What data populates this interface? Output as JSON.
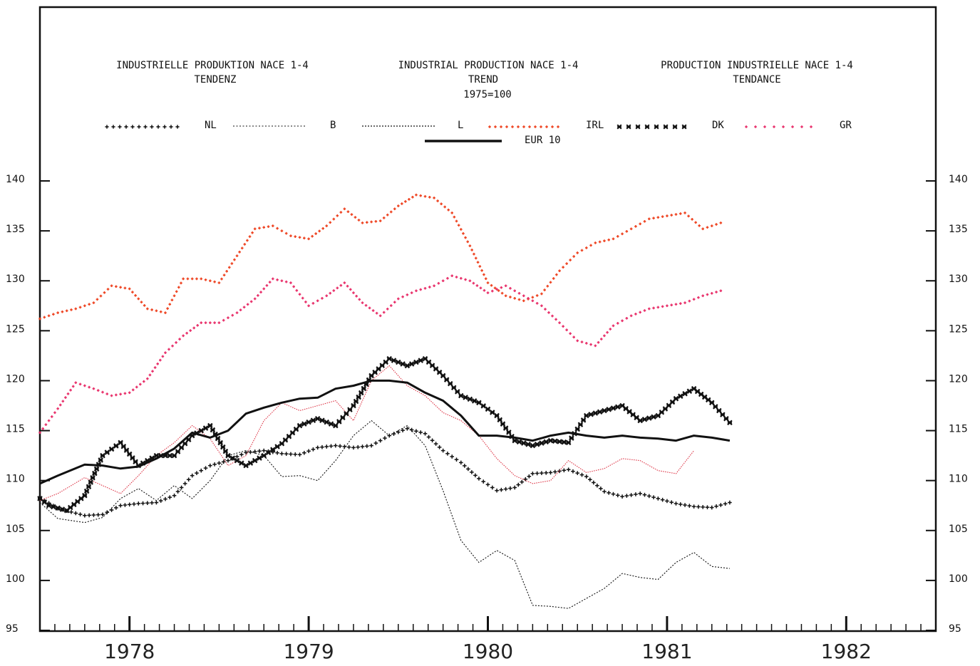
{
  "titles": {
    "de_line1": "INDUSTRIELLE PRODUKTION NACE 1-4",
    "de_line2": "TENDENZ",
    "en_line1": "INDUSTRIAL PRODUCTION NACE 1-4",
    "en_line2": "TREND",
    "en_line3": "1975=100",
    "fr_line1": "PRODUCTION INDUSTRIELLE NACE 1-4",
    "fr_line2": "TENDANCE"
  },
  "legend": {
    "nl": "NL",
    "b": "B",
    "l": "L",
    "irl": "IRL",
    "dk": "DK",
    "gr": "GR",
    "eur10": "EUR 10"
  },
  "colors": {
    "black": "#111111",
    "orange_red": "#ee4422",
    "pink": "#e8306a",
    "thin_red": "#dd3344"
  },
  "chart_data": {
    "type": "line",
    "title": "",
    "xlabel": "",
    "ylabel": "",
    "x_range": [
      1977.5,
      1982.5
    ],
    "ylim": [
      95,
      140
    ],
    "y_ticks": [
      95,
      100,
      105,
      110,
      115,
      120,
      125,
      130,
      135,
      140
    ],
    "y_tick_labels": [
      "95",
      "100",
      "105",
      "110",
      "115",
      "120",
      "125",
      "130",
      "135",
      "140"
    ],
    "x_tick_labels": [
      "1978",
      "1979",
      "1980",
      "1981",
      "1982"
    ],
    "series": [
      {
        "name": "NL",
        "style": "plus-marks",
        "color": "#111111",
        "x": [
          1977.5,
          1977.6,
          1977.75,
          1977.85,
          1977.95,
          1978.05,
          1978.15,
          1978.25,
          1978.35,
          1978.45,
          1978.55,
          1978.65,
          1978.75,
          1978.85,
          1978.95,
          1979.05,
          1979.15,
          1979.25,
          1979.35,
          1979.45,
          1979.55,
          1979.65,
          1979.75,
          1979.85,
          1979.95,
          1980.05,
          1980.15,
          1980.25,
          1980.35,
          1980.45,
          1980.55,
          1980.65,
          1980.75,
          1980.85,
          1980.95,
          1981.05,
          1981.15,
          1981.25,
          1981.35
        ],
        "y": [
          108.3,
          107.2,
          106.5,
          106.6,
          107.5,
          107.7,
          107.8,
          108.5,
          110.5,
          111.5,
          112,
          112.8,
          113,
          112.7,
          112.6,
          113.3,
          113.5,
          113.3,
          113.5,
          114.5,
          115.2,
          114.7,
          113,
          111.8,
          110.2,
          109,
          109.3,
          110.7,
          110.8,
          111.1,
          110.4,
          108.9,
          108.4,
          108.7,
          108.2,
          107.7,
          107.4,
          107.3,
          107.8
        ]
      },
      {
        "name": "B",
        "style": "thin-dotted",
        "color": "#111111",
        "x": [
          1977.5,
          1977.6,
          1977.75,
          1977.85,
          1977.95,
          1978.05,
          1978.15,
          1978.25,
          1978.35,
          1978.45,
          1978.55,
          1978.65,
          1978.75,
          1978.85,
          1978.95,
          1979.05,
          1979.15,
          1979.25,
          1979.35,
          1979.45,
          1979.55,
          1979.65,
          1979.75,
          1979.85,
          1979.95,
          1980.05,
          1980.15,
          1980.25,
          1980.35,
          1980.45,
          1980.55,
          1980.65,
          1980.75,
          1980.85,
          1980.95,
          1981.05,
          1981.15,
          1981.25,
          1981.35
        ],
        "y": [
          107.8,
          106.2,
          105.8,
          106.3,
          108.2,
          109.2,
          108.0,
          109.5,
          108.2,
          110.0,
          112.5,
          113.0,
          112.5,
          110.4,
          110.5,
          110.0,
          112.0,
          114.5,
          116.0,
          114.5,
          115.5,
          113.5,
          109.0,
          104.0,
          101.8,
          103.0,
          102.0,
          97.5,
          97.4,
          97.2,
          98.2,
          99.2,
          100.7,
          100.3,
          100.1,
          101.8,
          102.8,
          101.4,
          101.2
        ]
      },
      {
        "name": "L",
        "style": "thin-solid",
        "color": "#dd3344",
        "x": [
          1977.5,
          1977.6,
          1977.75,
          1977.85,
          1977.95,
          1978.05,
          1978.15,
          1978.25,
          1978.35,
          1978.45,
          1978.55,
          1978.65,
          1978.75,
          1978.85,
          1978.95,
          1979.05,
          1979.15,
          1979.25,
          1979.35,
          1979.45,
          1979.55,
          1979.65,
          1979.75,
          1979.85,
          1979.95,
          1980.05,
          1980.15,
          1980.25,
          1980.35,
          1980.45,
          1980.55,
          1980.65,
          1980.75,
          1980.85,
          1980.95,
          1981.05,
          1981.15
        ],
        "y": [
          108.0,
          108.7,
          110.3,
          109.5,
          108.7,
          110.5,
          112.5,
          113.8,
          115.5,
          114.2,
          111.5,
          112.5,
          116.0,
          117.8,
          117.0,
          117.5,
          118.0,
          116.0,
          120.0,
          121.5,
          119.5,
          118.5,
          116.8,
          116.0,
          114.5,
          112.2,
          110.5,
          109.7,
          110.0,
          112.0,
          110.8,
          111.2,
          112.2,
          112.0,
          111.0,
          110.7,
          113.0
        ]
      },
      {
        "name": "IRL",
        "style": "small-marks",
        "color": "#ee4422",
        "x": [
          1977.5,
          1977.6,
          1977.7,
          1977.8,
          1977.9,
          1978.0,
          1978.1,
          1978.2,
          1978.3,
          1978.4,
          1978.5,
          1978.6,
          1978.7,
          1978.8,
          1978.9,
          1979.0,
          1979.1,
          1979.2,
          1979.3,
          1979.4,
          1979.5,
          1979.6,
          1979.7,
          1979.8,
          1979.9,
          1980.0,
          1980.1,
          1980.2,
          1980.3,
          1980.4,
          1980.5,
          1980.6,
          1980.7,
          1980.8,
          1980.9,
          1981.0,
          1981.1,
          1981.2,
          1981.3
        ],
        "y": [
          126.2,
          126.8,
          127.2,
          127.8,
          129.5,
          129.2,
          127.2,
          126.8,
          130.2,
          130.2,
          129.8,
          132.5,
          135.2,
          135.5,
          134.5,
          134.2,
          135.5,
          137.2,
          135.8,
          136.0,
          137.5,
          138.6,
          138.3,
          136.8,
          133.5,
          129.8,
          128.5,
          128.0,
          128.7,
          131.0,
          132.8,
          133.8,
          134.2,
          135.2,
          136.2,
          136.5,
          136.8,
          135.2,
          135.8
        ]
      },
      {
        "name": "DK",
        "style": "bold-marks",
        "color": "#111111",
        "x": [
          1977.5,
          1977.55,
          1977.65,
          1977.75,
          1977.85,
          1977.95,
          1978.05,
          1978.15,
          1978.25,
          1978.35,
          1978.45,
          1978.55,
          1978.65,
          1978.75,
          1978.85,
          1978.95,
          1979.05,
          1979.15,
          1979.25,
          1979.35,
          1979.45,
          1979.55,
          1979.65,
          1979.75,
          1979.85,
          1979.95,
          1980.05,
          1980.15,
          1980.25,
          1980.35,
          1980.45,
          1980.55,
          1980.65,
          1980.75,
          1980.85,
          1980.95,
          1981.05,
          1981.15,
          1981.25,
          1981.35
        ],
        "y": [
          108.2,
          107.5,
          107.0,
          108.5,
          112.5,
          113.8,
          111.5,
          112.5,
          112.5,
          114.5,
          115.5,
          112.5,
          111.5,
          112.5,
          113.7,
          115.5,
          116.2,
          115.5,
          117.5,
          120.5,
          122.2,
          121.5,
          122.2,
          120.5,
          118.5,
          117.8,
          116.5,
          114.0,
          113.5,
          114.0,
          113.8,
          116.5,
          117.0,
          117.5,
          116.0,
          116.5,
          118.2,
          119.2,
          117.8,
          115.8
        ]
      },
      {
        "name": "GR",
        "style": "small-marks",
        "color": "#e8306a",
        "x": [
          1977.5,
          1977.6,
          1977.7,
          1977.8,
          1977.9,
          1978.0,
          1978.1,
          1978.2,
          1978.3,
          1978.4,
          1978.5,
          1978.6,
          1978.7,
          1978.8,
          1978.9,
          1979.0,
          1979.1,
          1979.2,
          1979.3,
          1979.4,
          1979.5,
          1979.6,
          1979.7,
          1979.8,
          1979.9,
          1980.0,
          1980.1,
          1980.2,
          1980.3,
          1980.4,
          1980.5,
          1980.6,
          1980.7,
          1980.8,
          1980.9,
          1981.0,
          1981.1,
          1981.2,
          1981.3
        ],
        "y": [
          114.8,
          117.2,
          119.8,
          119.2,
          118.5,
          118.8,
          120.2,
          122.8,
          124.5,
          125.8,
          125.8,
          126.8,
          128.2,
          130.2,
          129.8,
          127.5,
          128.5,
          129.8,
          127.8,
          126.5,
          128.2,
          129.0,
          129.5,
          130.5,
          130.0,
          128.8,
          129.5,
          128.5,
          127.5,
          125.8,
          124.0,
          123.5,
          125.5,
          126.5,
          127.2,
          127.5,
          127.8,
          128.5,
          129.0
        ]
      },
      {
        "name": "EUR 10",
        "style": "thick-solid",
        "color": "#111111",
        "x": [
          1977.5,
          1977.6,
          1977.75,
          1977.85,
          1977.95,
          1978.05,
          1978.15,
          1978.25,
          1978.35,
          1978.45,
          1978.55,
          1978.65,
          1978.75,
          1978.85,
          1978.95,
          1979.05,
          1979.15,
          1979.25,
          1979.35,
          1979.45,
          1979.55,
          1979.65,
          1979.75,
          1979.85,
          1979.95,
          1980.05,
          1980.15,
          1980.25,
          1980.35,
          1980.45,
          1980.55,
          1980.65,
          1980.75,
          1980.85,
          1980.95,
          1981.05,
          1981.15,
          1981.25,
          1981.35
        ],
        "y": [
          109.7,
          110.5,
          111.6,
          111.5,
          111.2,
          111.4,
          112.2,
          113.2,
          114.8,
          114.3,
          115.0,
          116.7,
          117.3,
          117.8,
          118.2,
          118.3,
          119.2,
          119.5,
          120.0,
          120.0,
          119.8,
          118.8,
          118.0,
          116.5,
          114.5,
          114.5,
          114.3,
          114.0,
          114.5,
          114.8,
          114.5,
          114.3,
          114.5,
          114.3,
          114.2,
          114.0,
          114.5,
          114.3,
          114.0
        ]
      }
    ]
  }
}
